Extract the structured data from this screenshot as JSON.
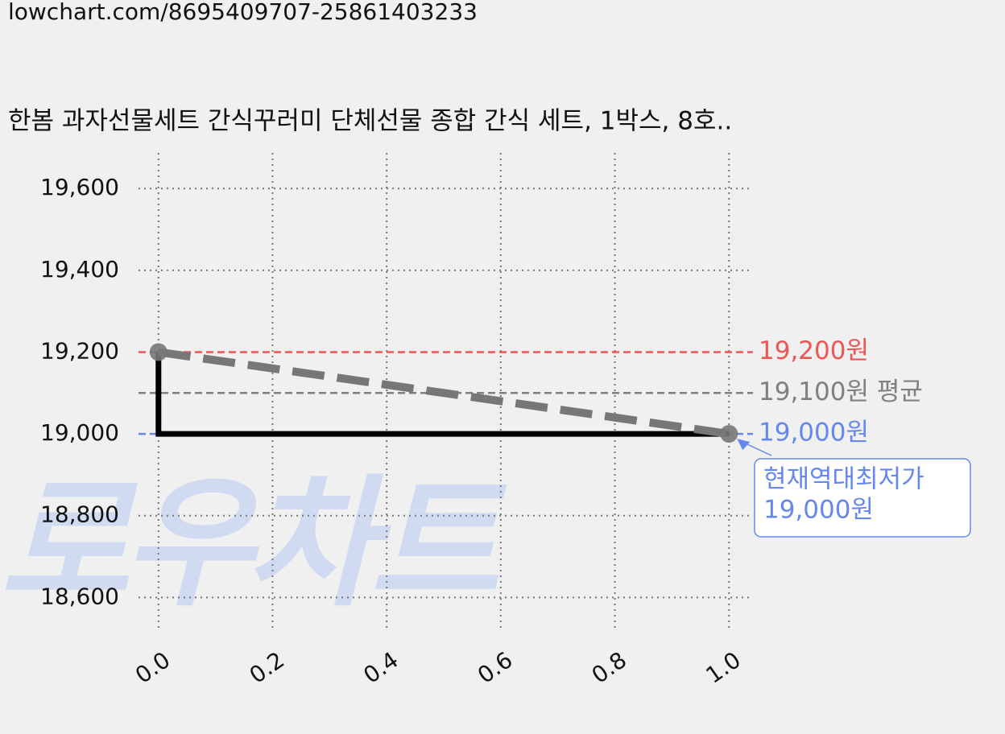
{
  "url": "lowchart.com/8695409707-25861403233",
  "chart_data": {
    "type": "line",
    "title": "한봄 과자선물세트 간식꾸러미 단체선물 종합 간식 세트, 1박스, 8호..",
    "watermark": "로우차트",
    "xlim": [
      -0.035,
      1.042
    ],
    "ylim": [
      18516,
      19687
    ],
    "xticks": [
      {
        "value": 0,
        "label": "0.0"
      },
      0.2,
      0.4,
      0.6,
      0.8,
      {
        "value": 1,
        "label": "1.0"
      }
    ],
    "yticks": [
      {
        "value": 18600,
        "label": "18,600"
      },
      {
        "value": 18800,
        "label": "18,800"
      },
      {
        "value": 19000,
        "label": "19,000"
      },
      {
        "value": 19200,
        "label": "19,200"
      },
      {
        "value": 19400,
        "label": "19,400"
      },
      {
        "value": 19600,
        "label": "19,600"
      }
    ],
    "grid": true,
    "series": [
      {
        "color": "#000000",
        "style": "solid",
        "x": [
          0,
          0,
          1
        ],
        "values": [
          19200,
          19000,
          19000
        ]
      },
      {
        "color": "#777777",
        "style": "dashed",
        "markers": true,
        "x": [
          0,
          1
        ],
        "values": [
          19200,
          19000
        ]
      }
    ],
    "reference_lines": [
      {
        "value": 19200,
        "label": "19,200원",
        "color": "#ee5555"
      },
      {
        "value": 19100,
        "label": "19,100원 평균",
        "color": "#808080"
      },
      {
        "value": 19000,
        "label": "19,000원",
        "color": "#6688ee"
      }
    ],
    "annotation": {
      "x": 1,
      "y": 19000,
      "lines": [
        "현재역대최저가",
        "19,000원"
      ],
      "color": "#6688ee"
    }
  }
}
